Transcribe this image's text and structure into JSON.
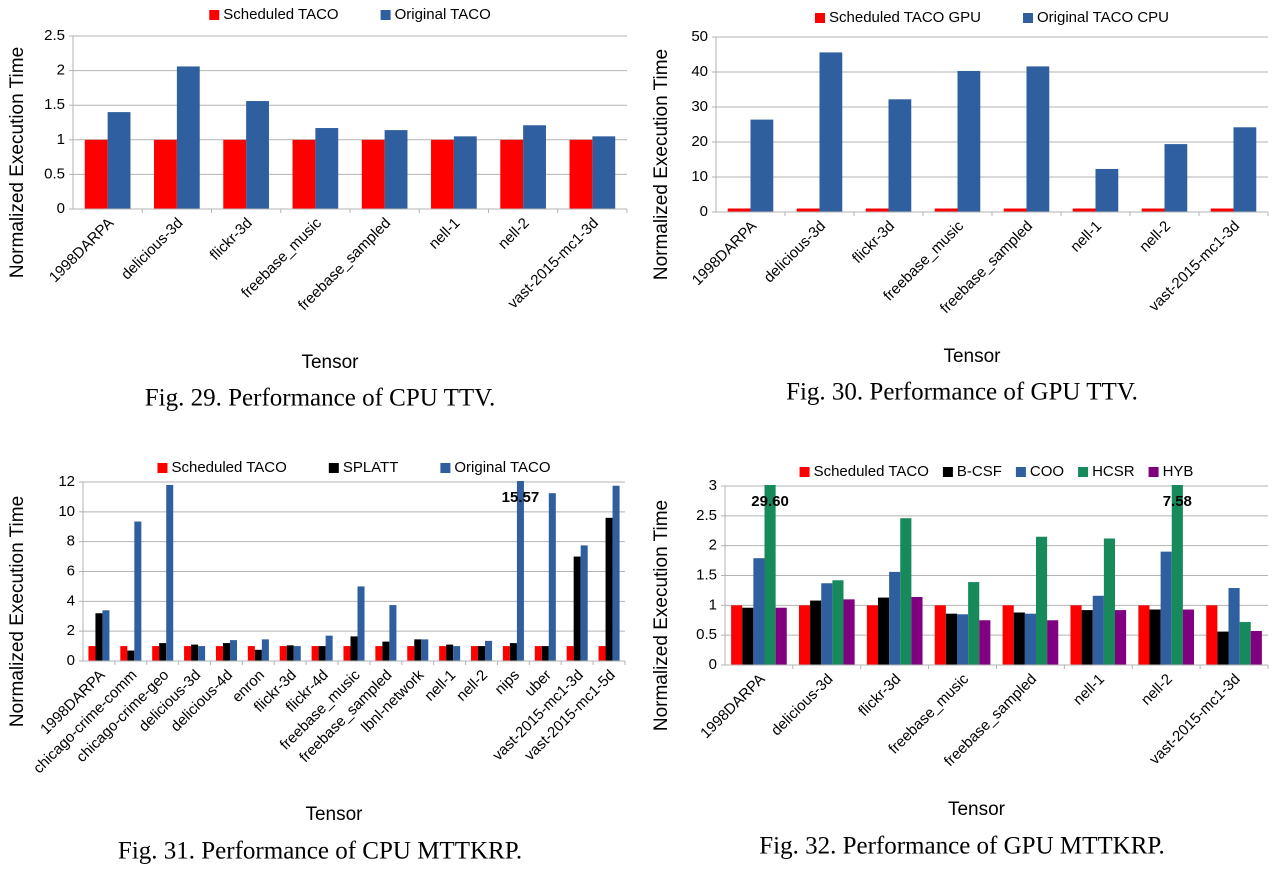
{
  "chart_data": [
    {
      "type": "bar",
      "caption": "Fig. 29.  Performance of CPU TTV.",
      "ylabel": "Normalized Execution Time",
      "xlabel": "Tensor",
      "categories": [
        "1998DARPA",
        "delicious-3d",
        "flickr-3d",
        "freebase_music",
        "freebase_sampled",
        "nell-1",
        "nell-2",
        "vast-2015-mc1-3d"
      ],
      "series": [
        {
          "name": "Scheduled TACO",
          "color": "#ff0000",
          "values": [
            1,
            1,
            1,
            1,
            1,
            1,
            1,
            1
          ]
        },
        {
          "name": "Original TACO",
          "color": "#2f5f9e",
          "values": [
            1.4,
            2.06,
            1.56,
            1.17,
            1.14,
            1.05,
            1.21,
            1.05
          ]
        }
      ],
      "ylim": [
        0,
        2.5
      ],
      "yticks": [
        0,
        0.5,
        1,
        1.5,
        2,
        2.5
      ],
      "grid": true
    },
    {
      "type": "bar",
      "caption": "Fig. 30.  Performance of GPU TTV.",
      "ylabel": "Normalized Execution Time",
      "xlabel": "Tensor",
      "categories": [
        "1998DARPA",
        "delicious-3d",
        "flickr-3d",
        "freebase_music",
        "freebase_sampled",
        "nell-1",
        "nell-2",
        "vast-2015-mc1-3d"
      ],
      "series": [
        {
          "name": "Scheduled TACO GPU",
          "color": "#ff0000",
          "values": [
            1,
            1,
            1,
            1,
            1,
            1,
            1,
            1
          ]
        },
        {
          "name": "Original TACO CPU",
          "color": "#2f5f9e",
          "values": [
            26.4,
            45.6,
            32.2,
            40.3,
            41.6,
            12.3,
            19.4,
            24.2
          ]
        }
      ],
      "ylim": [
        0,
        50
      ],
      "yticks": [
        0,
        10,
        20,
        30,
        40,
        50
      ],
      "grid": true
    },
    {
      "type": "bar",
      "caption": "Fig. 31.  Performance of CPU MTTKRP.",
      "ylabel": "Normalized Execution Time",
      "xlabel": "Tensor",
      "categories": [
        "1998DARPA",
        "chicago-crime-comm",
        "chicago-crime-geo",
        "delicious-3d",
        "delicious-4d",
        "enron",
        "flickr-3d",
        "flickr-4d",
        "freebase_music",
        "freebase_sampled",
        "lbnl-network",
        "nell-1",
        "nell-2",
        "nips",
        "uber",
        "vast-2015-mc1-3d",
        "vast-2015-mc1-5d"
      ],
      "series": [
        {
          "name": "Scheduled TACO",
          "color": "#ff0000",
          "values": [
            1,
            1,
            1,
            1,
            1,
            1,
            1,
            1,
            1,
            1,
            1,
            1,
            1,
            1,
            1,
            1,
            1
          ]
        },
        {
          "name": "SPLATT",
          "color": "#000000",
          "values": [
            3.2,
            0.7,
            1.2,
            1.1,
            1.2,
            0.75,
            1.05,
            1.0,
            1.65,
            1.3,
            1.45,
            1.1,
            1.0,
            1.2,
            1.0,
            7.0,
            9.6
          ]
        },
        {
          "name": "Original TACO",
          "color": "#2f5f9e",
          "values": [
            3.4,
            9.35,
            11.8,
            1.0,
            1.4,
            1.45,
            1.0,
            1.7,
            5.0,
            3.75,
            1.45,
            1.0,
            1.35,
            15.57,
            11.25,
            7.75,
            11.75
          ],
          "value_labels": [
            null,
            null,
            null,
            null,
            null,
            null,
            null,
            null,
            null,
            null,
            null,
            null,
            null,
            "15.57",
            null,
            null,
            null
          ]
        }
      ],
      "ylim": [
        0,
        12
      ],
      "yticks": [
        0,
        2,
        4,
        6,
        8,
        10,
        12
      ],
      "grid": true
    },
    {
      "type": "bar",
      "caption": "Fig. 32.  Performance of GPU MTTKRP.",
      "ylabel": "Normalized Execution Time",
      "xlabel": "Tensor",
      "categories": [
        "1998DARPA",
        "delicious-3d",
        "flickr-3d",
        "freebase_music",
        "freebase_sampled",
        "nell-1",
        "nell-2",
        "vast-2015-mc1-3d"
      ],
      "series": [
        {
          "name": "Scheduled TACO",
          "color": "#ff0000",
          "values": [
            1,
            1,
            1,
            1,
            1,
            1,
            1,
            1
          ]
        },
        {
          "name": "B-CSF",
          "color": "#000000",
          "values": [
            0.96,
            1.08,
            1.13,
            0.86,
            0.88,
            0.92,
            0.93,
            0.56
          ]
        },
        {
          "name": "COO",
          "color": "#2f5f9e",
          "values": [
            1.79,
            1.37,
            1.56,
            0.85,
            0.86,
            1.16,
            1.9,
            1.29
          ]
        },
        {
          "name": "HCSR",
          "color": "#178a5c",
          "values": [
            29.6,
            1.42,
            2.46,
            1.39,
            2.15,
            2.12,
            7.58,
            0.72
          ],
          "value_labels": [
            "29.60",
            null,
            null,
            null,
            null,
            null,
            "7.58",
            null
          ]
        },
        {
          "name": "HYB",
          "color": "#800080",
          "values": [
            0.96,
            1.1,
            1.14,
            0.75,
            0.75,
            0.92,
            0.93,
            0.57
          ]
        }
      ],
      "ylim": [
        0,
        3
      ],
      "yticks": [
        0,
        0.5,
        1,
        1.5,
        2,
        2.5,
        3
      ],
      "grid": true
    }
  ]
}
